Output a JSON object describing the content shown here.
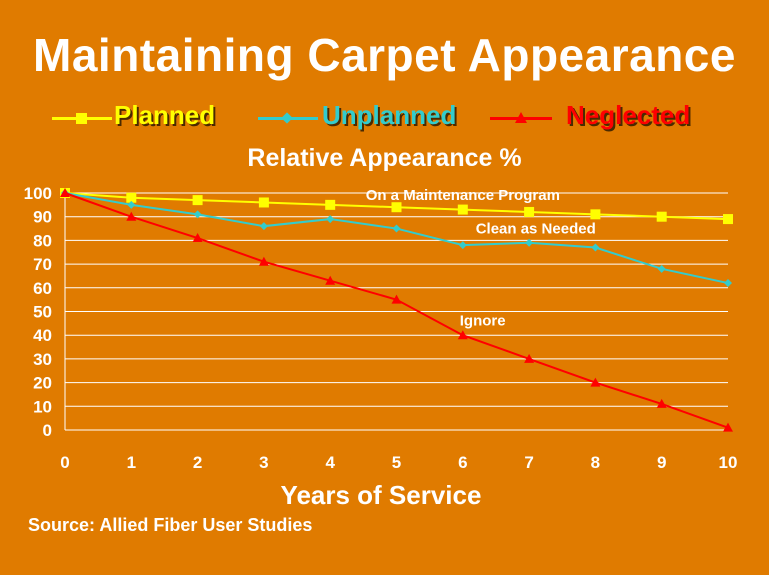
{
  "title": "Maintaining Carpet Appearance",
  "legend": [
    {
      "label": "Planned",
      "color": "#FFFF00",
      "marker": "square"
    },
    {
      "label": "Unplanned",
      "color": "#33CCCC",
      "marker": "diamond"
    },
    {
      "label": "Neglected",
      "color": "#FF0000",
      "marker": "triangle"
    }
  ],
  "source": "Source: Allied Fiber User Studies",
  "chart_data": {
    "type": "line",
    "title": "Relative Appearance %",
    "xlabel": "Years of Service",
    "ylabel": "",
    "x": [
      0,
      1,
      2,
      3,
      4,
      5,
      6,
      7,
      8,
      9,
      10
    ],
    "xlim": [
      0,
      10
    ],
    "ylim": [
      0,
      100
    ],
    "yticks": [
      0,
      10,
      20,
      30,
      40,
      50,
      60,
      70,
      80,
      90,
      100
    ],
    "grid": true,
    "legend_position": "top",
    "series": [
      {
        "name": "Planned",
        "color": "#FFFF00",
        "marker": "square",
        "values": [
          100,
          98,
          97,
          96,
          95,
          94,
          93,
          92,
          91,
          90,
          89
        ]
      },
      {
        "name": "Unplanned",
        "color": "#33CCCC",
        "marker": "diamond",
        "values": [
          100,
          95,
          91,
          86,
          89,
          85,
          78,
          79,
          77,
          68,
          62
        ]
      },
      {
        "name": "Neglected",
        "color": "#FF0000",
        "marker": "triangle",
        "values": [
          100,
          90,
          81,
          71,
          63,
          55,
          40,
          30,
          20,
          11,
          1
        ]
      }
    ],
    "annotations": [
      {
        "text": "On a Maintenance Program",
        "x": 6,
        "y": 97
      },
      {
        "text": "Clean as Needed",
        "x": 7.1,
        "y": 83
      },
      {
        "text": "Ignore",
        "x": 6.3,
        "y": 44
      }
    ]
  }
}
